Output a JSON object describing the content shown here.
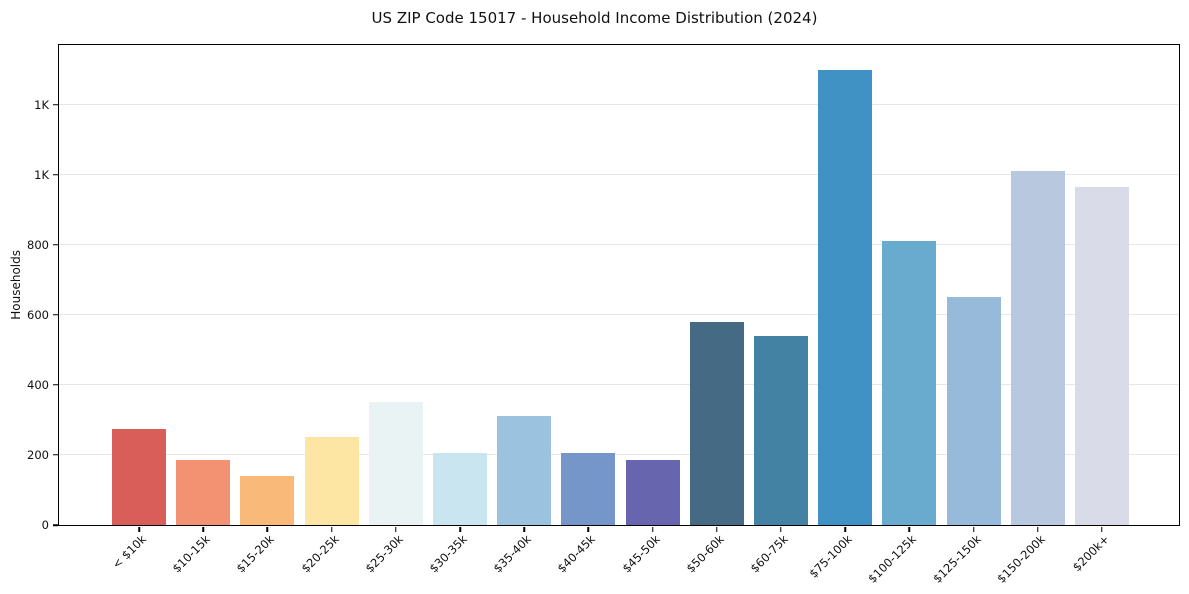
{
  "figure": {
    "background_color": "#ffffff",
    "spine_color": "#000000",
    "gridline_color": "#e7e7e7",
    "text_color": "#111111"
  },
  "chart_data": {
    "type": "bar",
    "title": "US ZIP Code 15017 - Household Income Distribution (2024)",
    "xlabel": "",
    "ylabel": "Households",
    "categories": [
      "< $10k",
      "$10-15k",
      "$15-20k",
      "$20-25k",
      "$25-30k",
      "$30-35k",
      "$35-40k",
      "$40-45k",
      "$45-50k",
      "$50-60k",
      "$60-75k",
      "$75-100k",
      "$100-125k",
      "$125-150k",
      "$150-200k",
      "$200k+"
    ],
    "values": [
      275,
      185,
      140,
      250,
      350,
      205,
      310,
      205,
      185,
      580,
      540,
      1300,
      810,
      650,
      1010,
      965
    ],
    "bar_colors": [
      "#d6524e",
      "#f28a68",
      "#f9b46e",
      "#fde49c",
      "#e7f2f3",
      "#c5e3ef",
      "#93bddc",
      "#6b8ec4",
      "#5a59a8",
      "#36607a",
      "#35789c",
      "#338abf",
      "#5ea5ca",
      "#8fb5d8",
      "#b3c5dd",
      "#d6d8e6"
    ],
    "y_ticks": [
      {
        "value": 0,
        "label": "0"
      },
      {
        "value": 200,
        "label": "200"
      },
      {
        "value": 400,
        "label": "400"
      },
      {
        "value": 600,
        "label": "600"
      },
      {
        "value": 800,
        "label": "800"
      },
      {
        "value": 1000,
        "label": "1K"
      },
      {
        "value": 1200,
        "label": "1K"
      }
    ],
    "ylim": [
      0,
      1370
    ],
    "grid": "horizontal",
    "legend": "none",
    "x_tick_rotation_deg": 45
  }
}
